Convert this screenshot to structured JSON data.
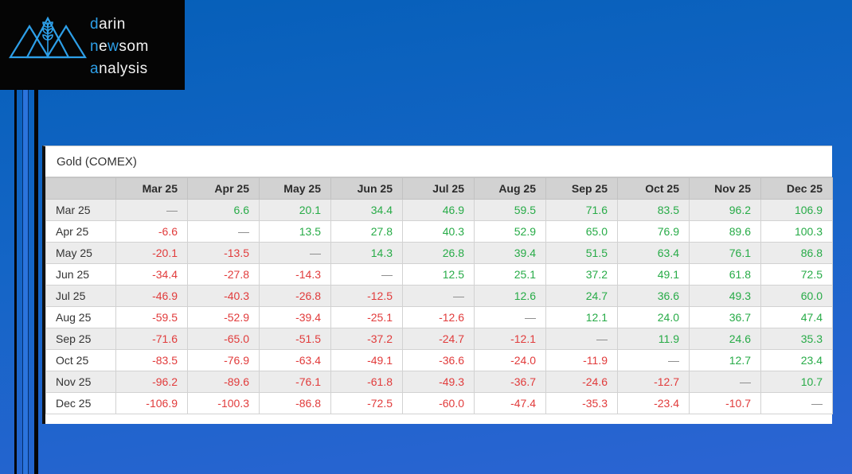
{
  "logo": {
    "lines": [
      [
        {
          "t": "d",
          "a": true
        },
        {
          "t": "arin",
          "a": false
        }
      ],
      [
        {
          "t": "n",
          "a": true
        },
        {
          "t": "e",
          "a": false
        },
        {
          "t": "w",
          "a": true
        },
        {
          "t": "som",
          "a": false
        }
      ],
      [
        {
          "t": "a",
          "a": true
        },
        {
          "t": "nalysis",
          "a": false
        }
      ]
    ],
    "accent_color": "#2d9fe8"
  },
  "table": {
    "title": "Gold (COMEX)",
    "columns": [
      "Mar 25",
      "Apr 25",
      "May 25",
      "Jun 25",
      "Jul 25",
      "Aug 25",
      "Sep 25",
      "Oct 25",
      "Nov 25",
      "Dec 25"
    ],
    "rows": [
      {
        "label": "Mar 25",
        "values": [
          "—",
          "6.6",
          "20.1",
          "34.4",
          "46.9",
          "59.5",
          "71.6",
          "83.5",
          "96.2",
          "106.9"
        ]
      },
      {
        "label": "Apr 25",
        "values": [
          "-6.6",
          "—",
          "13.5",
          "27.8",
          "40.3",
          "52.9",
          "65.0",
          "76.9",
          "89.6",
          "100.3"
        ]
      },
      {
        "label": "May 25",
        "values": [
          "-20.1",
          "-13.5",
          "—",
          "14.3",
          "26.8",
          "39.4",
          "51.5",
          "63.4",
          "76.1",
          "86.8"
        ]
      },
      {
        "label": "Jun 25",
        "values": [
          "-34.4",
          "-27.8",
          "-14.3",
          "—",
          "12.5",
          "25.1",
          "37.2",
          "49.1",
          "61.8",
          "72.5"
        ]
      },
      {
        "label": "Jul 25",
        "values": [
          "-46.9",
          "-40.3",
          "-26.8",
          "-12.5",
          "—",
          "12.6",
          "24.7",
          "36.6",
          "49.3",
          "60.0"
        ]
      },
      {
        "label": "Aug 25",
        "values": [
          "-59.5",
          "-52.9",
          "-39.4",
          "-25.1",
          "-12.6",
          "—",
          "12.1",
          "24.0",
          "36.7",
          "47.4"
        ]
      },
      {
        "label": "Sep 25",
        "values": [
          "-71.6",
          "-65.0",
          "-51.5",
          "-37.2",
          "-24.7",
          "-12.1",
          "—",
          "11.9",
          "24.6",
          "35.3"
        ]
      },
      {
        "label": "Oct 25",
        "values": [
          "-83.5",
          "-76.9",
          "-63.4",
          "-49.1",
          "-36.6",
          "-24.0",
          "-11.9",
          "—",
          "12.7",
          "23.4"
        ]
      },
      {
        "label": "Nov 25",
        "values": [
          "-96.2",
          "-89.6",
          "-76.1",
          "-61.8",
          "-49.3",
          "-36.7",
          "-24.6",
          "-12.7",
          "—",
          "10.7"
        ]
      },
      {
        "label": "Dec 25",
        "values": [
          "-106.9",
          "-100.3",
          "-86.8",
          "-72.5",
          "-60.0",
          "-47.4",
          "-35.3",
          "-23.4",
          "-10.7",
          "—"
        ]
      }
    ]
  },
  "colors": {
    "positive": "#27ab47",
    "negative": "#e13b3b",
    "dash": "#888888",
    "accent": "#2d9fe8"
  }
}
